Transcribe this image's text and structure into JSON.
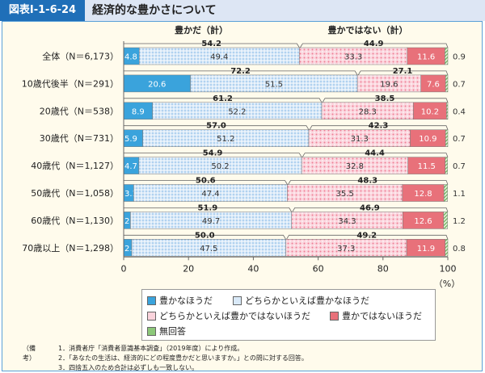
{
  "header": {
    "figure_id": "図表I-1-6-24",
    "title": "経済的な豊かさについて"
  },
  "chart_data": {
    "type": "bar",
    "orientation": "horizontal",
    "stacked": true,
    "group_labels": [
      "豊かだ（計）",
      "豊かではない（計）"
    ],
    "categories": [
      "全体（N＝6,173）",
      "10歳代後半（N＝291）",
      "20歳代（N＝538）",
      "30歳代（N＝731）",
      "40歳代（N＝1,127）",
      "50歳代（N＝1,058）",
      "60歳代（N＝1,130）",
      "70歳以上（N＝1,298）"
    ],
    "series": [
      {
        "name": "豊かなほうだ",
        "color": "#3aa3dc",
        "values": [
          4.8,
          20.6,
          8.9,
          5.9,
          4.7,
          3.1,
          2.1,
          2.5
        ]
      },
      {
        "name": "どちらかといえば豊かなほうだ",
        "color": "#d9e9f8",
        "values": [
          49.4,
          51.5,
          52.2,
          51.2,
          50.2,
          47.4,
          49.7,
          47.5
        ]
      },
      {
        "name": "どちらかといえば豊かではないほうだ",
        "color": "#fad3dc",
        "values": [
          33.3,
          19.6,
          28.3,
          31.3,
          32.8,
          35.5,
          34.3,
          37.3
        ]
      },
      {
        "name": "豊かではないほうだ",
        "color": "#e8717a",
        "values": [
          11.6,
          7.6,
          10.2,
          10.9,
          11.5,
          12.8,
          12.6,
          11.9
        ]
      },
      {
        "name": "無回答",
        "color": "#8cc87a",
        "values": [
          0.9,
          0.7,
          0.4,
          0.7,
          0.7,
          1.1,
          1.2,
          0.8
        ]
      }
    ],
    "totals_yutaka": [
      54.2,
      72.2,
      61.2,
      57.0,
      54.9,
      50.6,
      51.9,
      50.0
    ],
    "totals_not_yutaka": [
      44.9,
      27.1,
      38.5,
      42.3,
      44.4,
      48.3,
      46.9,
      49.2
    ],
    "xlim": [
      0,
      100
    ],
    "xticks": [
      "0",
      "20",
      "40",
      "60",
      "80",
      "100"
    ],
    "unit": "（%）",
    "legend": "bottom"
  },
  "notes": {
    "label": "（備考）",
    "items": [
      "1．消費者庁「消費者意識基本調査」（2019年度）により作成。",
      "2．「あなたの生活は、経済的にどの程度豊かだと思いますか。」との問に対する回答。",
      "3．四捨五入のため合計は必ずしも一致しない。"
    ]
  }
}
